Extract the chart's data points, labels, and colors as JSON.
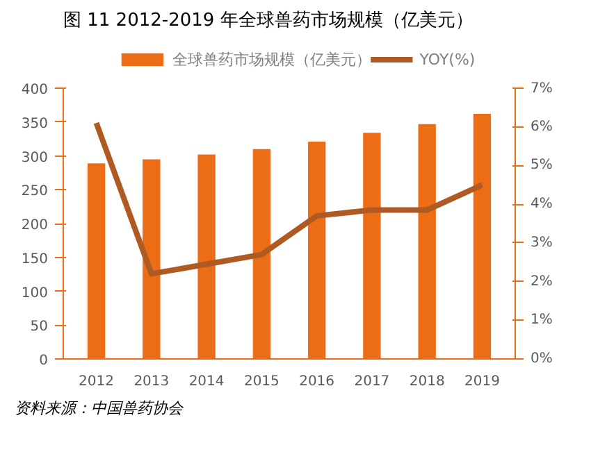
{
  "chart_data": {
    "type": "bar",
    "title": "图  11 2012-2019 年全球兽药市场规模（亿美元）",
    "categories": [
      "2012",
      "2013",
      "2014",
      "2015",
      "2016",
      "2017",
      "2018",
      "2019"
    ],
    "series": [
      {
        "name": "全球兽药市场规模（亿美元）",
        "color": "#ed6d16",
        "values": [
          289,
          295,
          302,
          310,
          321,
          334,
          347,
          362
        ]
      },
      {
        "name": "YOY(%)",
        "type": "line",
        "axis": "y2",
        "color": "#b05a23",
        "values": [
          6.1,
          2.2,
          2.45,
          2.7,
          3.7,
          3.85,
          3.85,
          4.5
        ]
      }
    ],
    "ylim": [
      0,
      400
    ],
    "yticks": [
      0,
      50,
      100,
      150,
      200,
      250,
      300,
      350,
      400
    ],
    "y2lim": [
      0,
      7
    ],
    "y2ticks": [
      {
        "value": 0,
        "label": "0%"
      },
      {
        "value": 1,
        "label": "1%"
      },
      {
        "value": 2,
        "label": "2%"
      },
      {
        "value": 3,
        "label": "3%"
      },
      {
        "value": 4,
        "label": "4%"
      },
      {
        "value": 5,
        "label": "5%"
      },
      {
        "value": 6,
        "label": "6%"
      },
      {
        "value": 7,
        "label": "7%"
      }
    ],
    "legend": "top",
    "grid": false,
    "annotations": [
      "资料来源：中国兽药协会"
    ]
  }
}
